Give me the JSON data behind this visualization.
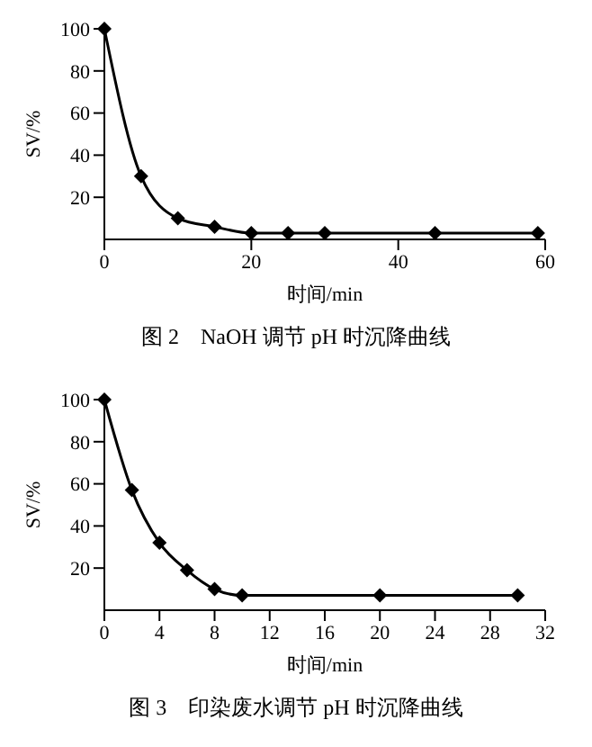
{
  "chart_data": [
    {
      "type": "line",
      "title": "图 2　NaOH 调节 pH 时沉降曲线",
      "xlabel": "时间/min",
      "ylabel": "SV/%",
      "x": [
        0,
        5,
        10,
        15,
        20,
        25,
        30,
        45,
        59
      ],
      "series": [
        {
          "color": "#000000",
          "values": [
            100,
            30,
            10,
            6,
            3,
            3,
            3,
            3,
            3
          ]
        }
      ],
      "xlim": [
        0,
        60
      ],
      "xticks": [
        0,
        20,
        40,
        60
      ],
      "ylim": [
        0,
        100
      ],
      "yticks": [
        20,
        40,
        60,
        80,
        100
      ],
      "marker": "diamond",
      "grid": false,
      "legend": false
    },
    {
      "type": "line",
      "title": "图 3　印染废水调节 pH 时沉降曲线",
      "xlabel": "时间/min",
      "ylabel": "SV/%",
      "x": [
        0,
        2,
        4,
        6,
        8,
        10,
        20,
        30
      ],
      "series": [
        {
          "color": "#000000",
          "values": [
            100,
            57,
            32,
            19,
            10,
            7,
            7,
            7
          ]
        }
      ],
      "xlim": [
        0,
        32
      ],
      "xticks": [
        0,
        4,
        8,
        12,
        16,
        20,
        24,
        28,
        32
      ],
      "ylim": [
        0,
        100
      ],
      "yticks": [
        20,
        40,
        60,
        80,
        100
      ],
      "marker": "diamond",
      "grid": false,
      "legend": false
    }
  ]
}
